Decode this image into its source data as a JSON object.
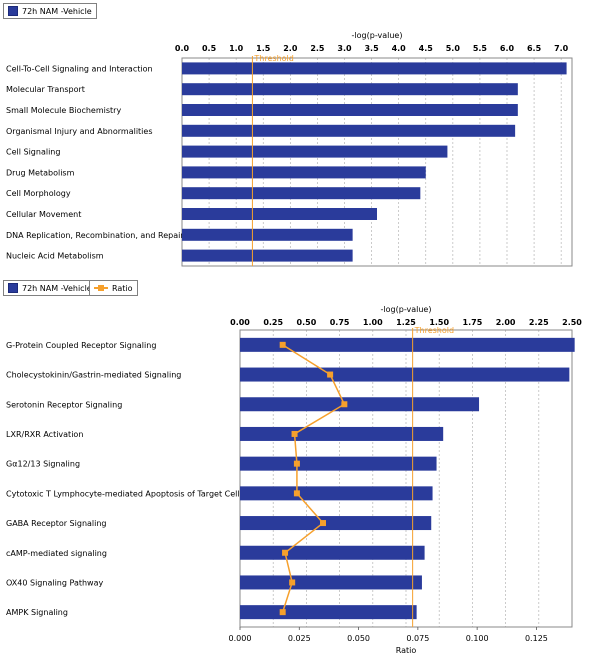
{
  "colors": {
    "bar": "#2a3b9b",
    "threshold": "#f6a02c",
    "ratio": "#f6a02c",
    "grid": "#b5b5b5"
  },
  "chart_data": [
    {
      "type": "bar",
      "orientation": "horizontal",
      "legend": [
        "72h NAM -Vehicle"
      ],
      "xlabel": "-log(p-value)",
      "xlim": [
        0,
        7.2
      ],
      "ticks": [
        "0.0",
        "0.5",
        "1.0",
        "1.5",
        "2.0",
        "2.5",
        "3.0",
        "3.5",
        "4.0",
        "4.5",
        "5.0",
        "5.5",
        "6.0",
        "6.5",
        "7.0"
      ],
      "threshold": {
        "label": "Threshold",
        "value": 1.3
      },
      "categories": [
        "Cell-To-Cell Signaling and Interaction",
        "Molecular Transport",
        "Small Molecule Biochemistry",
        "Organismal Injury and Abnormalities",
        "Cell Signaling",
        "Drug Metabolism",
        "Cell Morphology",
        "Cellular Movement",
        "DNA Replication, Recombination, and Repair",
        "Nucleic Acid Metabolism"
      ],
      "values": [
        7.1,
        6.2,
        6.2,
        6.15,
        4.9,
        4.5,
        4.4,
        3.6,
        3.15,
        3.15
      ]
    },
    {
      "type": "bar",
      "orientation": "horizontal",
      "legend": [
        "72h NAM -Vehicle",
        "Ratio"
      ],
      "xlabel": "-log(p-value)",
      "xlim": [
        0,
        2.5
      ],
      "ticks": [
        "0.00",
        "0.25",
        "0.50",
        "0.75",
        "1.00",
        "1.25",
        "1.50",
        "1.75",
        "2.00",
        "2.25",
        "2.50"
      ],
      "threshold": {
        "label": "Threshold",
        "value": 1.3
      },
      "secondary_axis": {
        "xlabel": "Ratio",
        "xlim": [
          0,
          0.14
        ],
        "ticks": [
          "0.000",
          "0.025",
          "0.050",
          "0.075",
          "0.100",
          "0.125"
        ]
      },
      "categories": [
        "G-Protein Coupled Receptor Signaling",
        "Cholecystokinin/Gastrin-mediated Signaling",
        "Serotonin Receptor Signaling",
        "LXR/RXR Activation",
        "Gα12/13 Signaling",
        "Cytotoxic T Lymphocyte-mediated Apoptosis of Target Cells",
        "GABA Receptor Signaling",
        "cAMP-mediated signaling",
        "OX40 Signaling Pathway",
        "AMPK Signaling"
      ],
      "values": [
        2.52,
        2.48,
        1.8,
        1.53,
        1.48,
        1.45,
        1.44,
        1.39,
        1.37,
        1.33
      ],
      "ratio": [
        0.018,
        0.038,
        0.044,
        0.023,
        0.024,
        0.024,
        0.035,
        0.019,
        0.022,
        0.018
      ]
    }
  ]
}
